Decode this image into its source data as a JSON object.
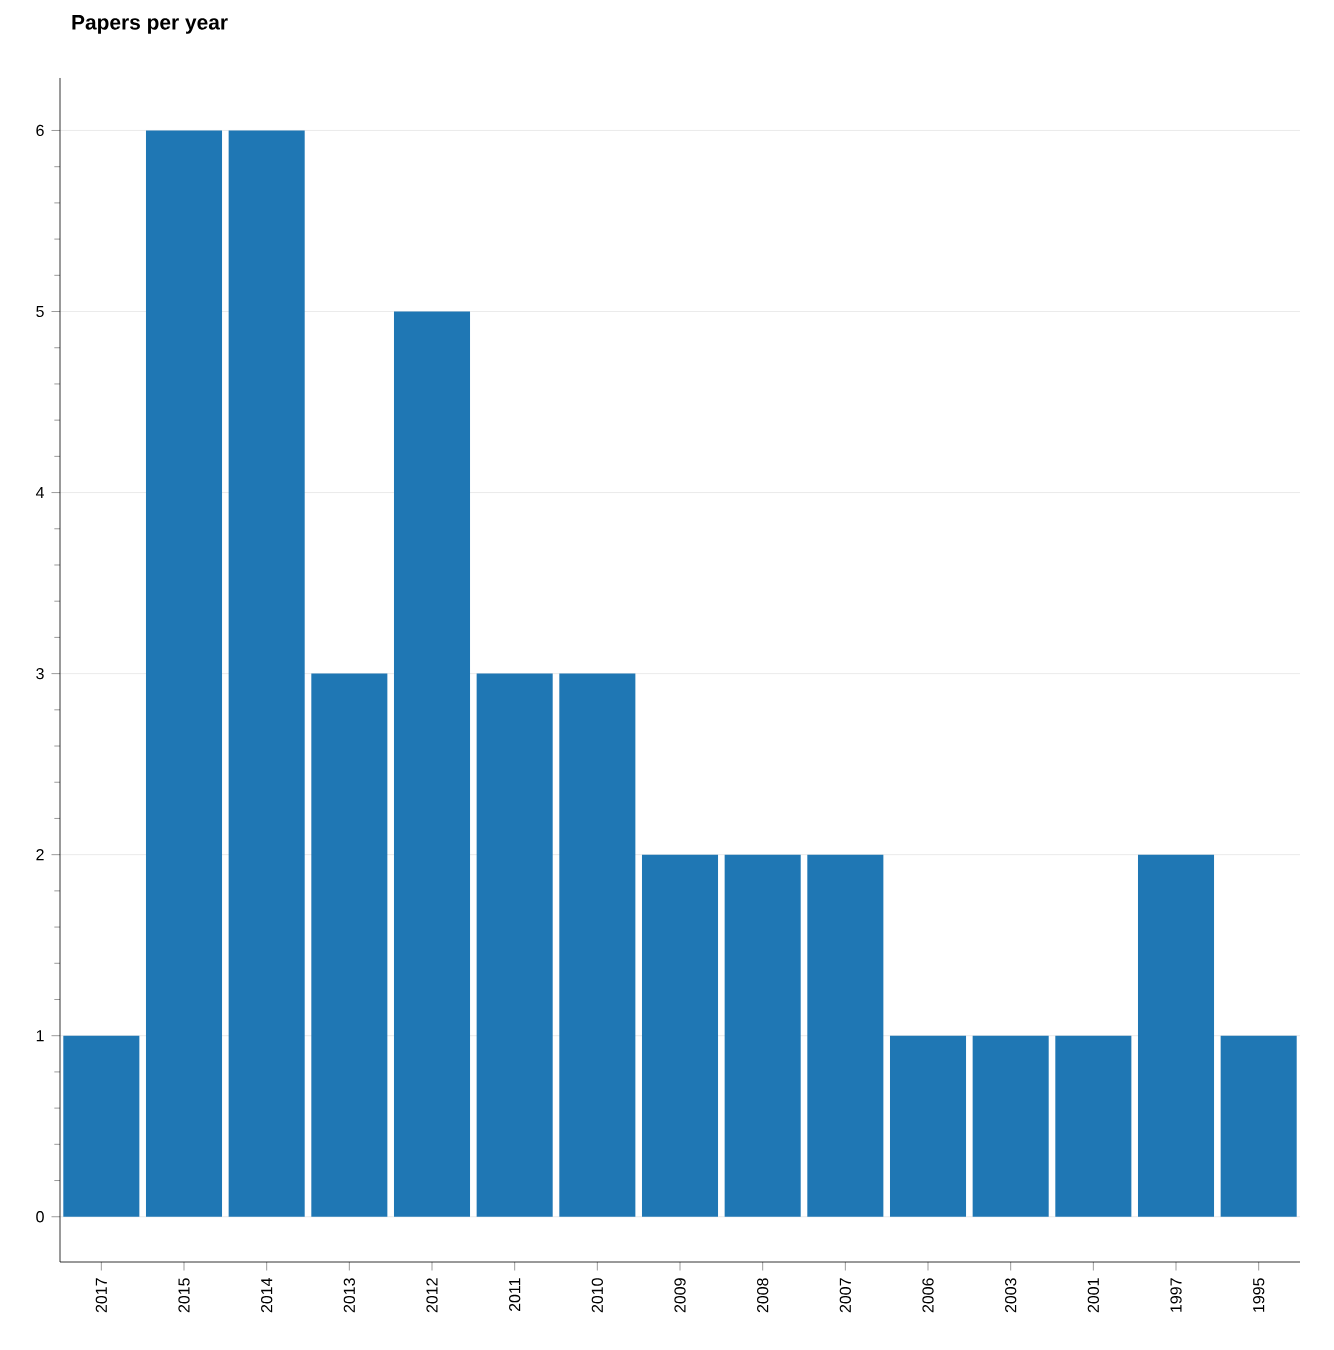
{
  "chart_data": {
    "type": "bar",
    "title": "Papers per year",
    "categories": [
      "2017",
      "2015",
      "2014",
      "2013",
      "2012",
      "2011",
      "2010",
      "2009",
      "2008",
      "2007",
      "2006",
      "2003",
      "2001",
      "1997",
      "1995"
    ],
    "values": [
      1,
      6,
      6,
      3,
      5,
      3,
      3,
      2,
      2,
      2,
      1,
      1,
      1,
      2,
      1
    ],
    "color": "#1f77b4",
    "ylim": [
      -0.25,
      6.29
    ],
    "yticks": [
      0,
      1,
      2,
      3,
      4,
      5,
      6
    ],
    "grid": "y"
  }
}
